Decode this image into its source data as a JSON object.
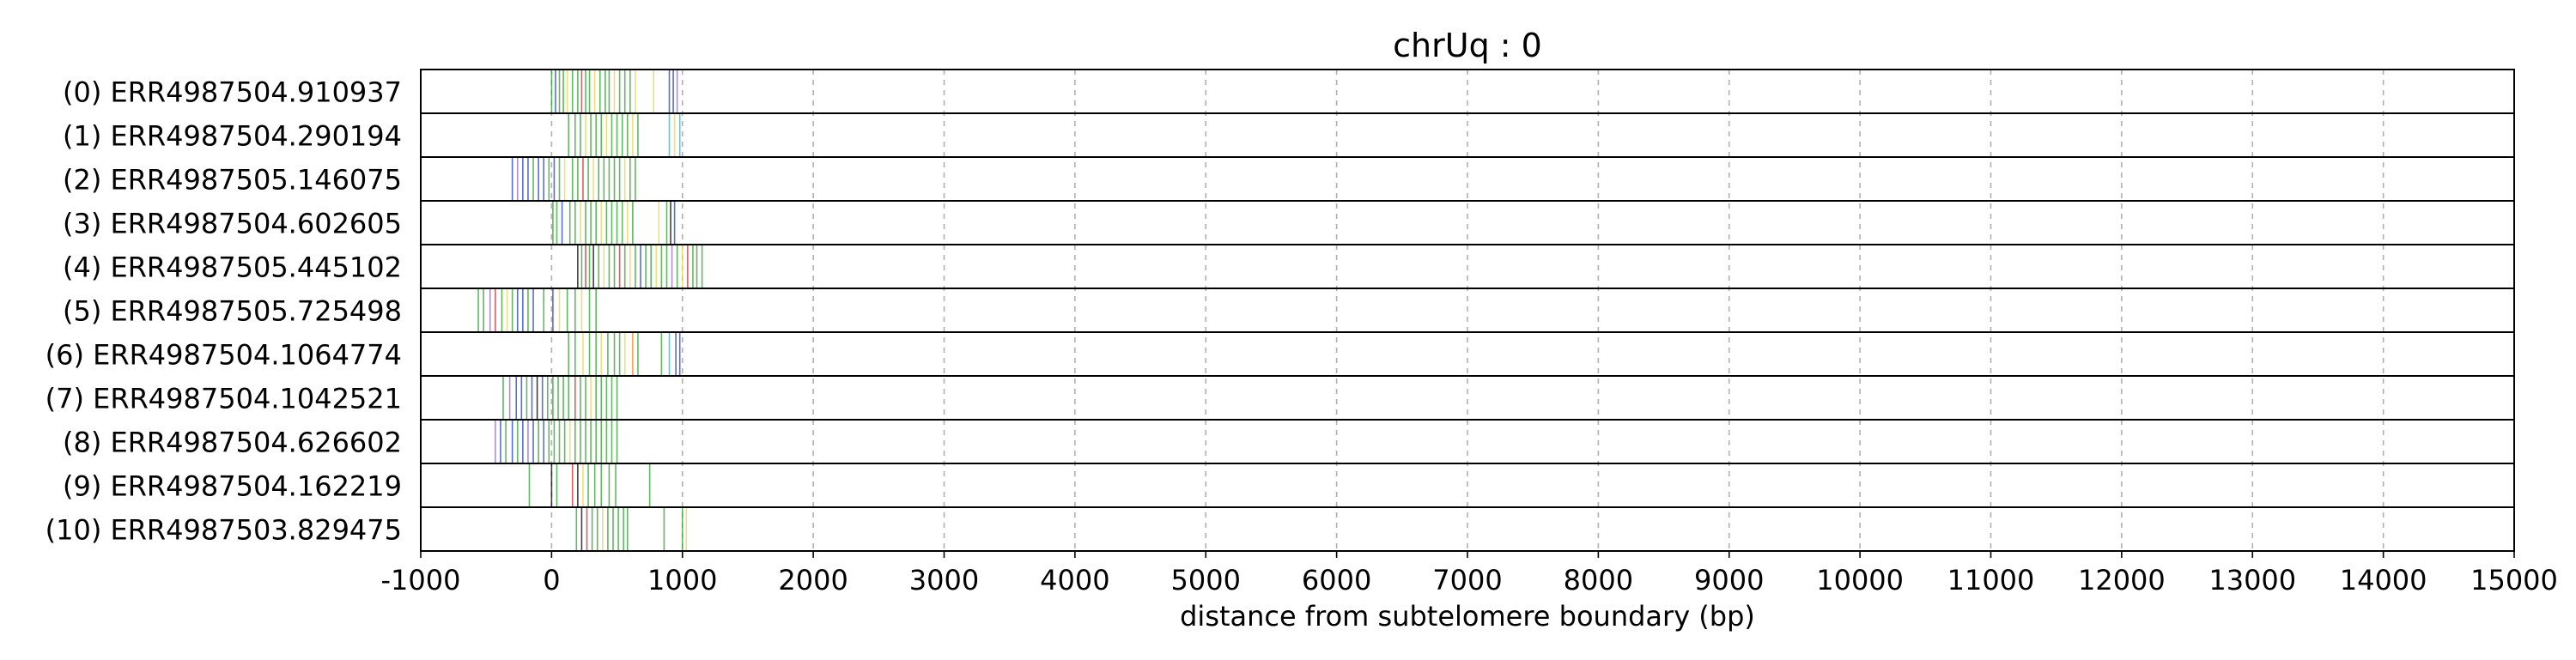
{
  "chart_data": {
    "type": "event-track",
    "title": "chrUq : 0",
    "xlabel": "distance from subtelomere boundary (bp)",
    "xlim": [
      -1000,
      15000
    ],
    "xticks": [
      -1000,
      0,
      1000,
      2000,
      3000,
      4000,
      5000,
      6000,
      7000,
      8000,
      9000,
      10000,
      11000,
      12000,
      13000,
      14000,
      15000
    ],
    "grid": "x-dashed",
    "colors": {
      "green": "#2ca02c",
      "blue": "#1f3fbf",
      "yellow": "#e8d44d",
      "red": "#d62728",
      "purple": "#9467bd",
      "orange": "#ff7f0e",
      "cyan": "#17becf",
      "black": "#000000"
    },
    "reads": [
      {
        "label": "(0) ERR4987504.910937",
        "events": [
          [
            0,
            "green"
          ],
          [
            30,
            "blue"
          ],
          [
            60,
            "green"
          ],
          [
            90,
            "green"
          ],
          [
            120,
            "yellow"
          ],
          [
            160,
            "green"
          ],
          [
            200,
            "green"
          ],
          [
            230,
            "red"
          ],
          [
            260,
            "green"
          ],
          [
            290,
            "green"
          ],
          [
            330,
            "yellow"
          ],
          [
            370,
            "green"
          ],
          [
            410,
            "green"
          ],
          [
            440,
            "green"
          ],
          [
            480,
            "yellow"
          ],
          [
            520,
            "green"
          ],
          [
            560,
            "green"
          ],
          [
            600,
            "green"
          ],
          [
            640,
            "yellow"
          ],
          [
            780,
            "yellow"
          ],
          [
            900,
            "blue"
          ],
          [
            930,
            "blue"
          ],
          [
            960,
            "purple"
          ]
        ]
      },
      {
        "label": "(1) ERR4987504.290194",
        "events": [
          [
            130,
            "green"
          ],
          [
            180,
            "green"
          ],
          [
            220,
            "green"
          ],
          [
            260,
            "yellow"
          ],
          [
            300,
            "green"
          ],
          [
            340,
            "green"
          ],
          [
            380,
            "green"
          ],
          [
            420,
            "yellow"
          ],
          [
            460,
            "green"
          ],
          [
            500,
            "green"
          ],
          [
            540,
            "green"
          ],
          [
            580,
            "green"
          ],
          [
            620,
            "yellow"
          ],
          [
            660,
            "green"
          ],
          [
            900,
            "cyan"
          ],
          [
            940,
            "yellow"
          ],
          [
            980,
            "cyan"
          ]
        ]
      },
      {
        "label": "(2) ERR4987505.146075",
        "events": [
          [
            -300,
            "blue"
          ],
          [
            -260,
            "purple"
          ],
          [
            -220,
            "blue"
          ],
          [
            -180,
            "blue"
          ],
          [
            -140,
            "green"
          ],
          [
            -100,
            "blue"
          ],
          [
            -60,
            "blue"
          ],
          [
            -20,
            "green"
          ],
          [
            20,
            "blue"
          ],
          [
            60,
            "green"
          ],
          [
            100,
            "yellow"
          ],
          [
            160,
            "green"
          ],
          [
            200,
            "green"
          ],
          [
            240,
            "red"
          ],
          [
            280,
            "green"
          ],
          [
            320,
            "yellow"
          ],
          [
            360,
            "green"
          ],
          [
            400,
            "green"
          ],
          [
            440,
            "green"
          ],
          [
            480,
            "green"
          ],
          [
            520,
            "green"
          ],
          [
            560,
            "yellow"
          ],
          [
            600,
            "green"
          ],
          [
            640,
            "green"
          ]
        ]
      },
      {
        "label": "(3) ERR4987504.602605",
        "events": [
          [
            10,
            "green"
          ],
          [
            40,
            "green"
          ],
          [
            80,
            "blue"
          ],
          [
            140,
            "green"
          ],
          [
            180,
            "green"
          ],
          [
            220,
            "yellow"
          ],
          [
            260,
            "green"
          ],
          [
            300,
            "green"
          ],
          [
            340,
            "green"
          ],
          [
            380,
            "yellow"
          ],
          [
            420,
            "green"
          ],
          [
            460,
            "green"
          ],
          [
            500,
            "green"
          ],
          [
            540,
            "green"
          ],
          [
            580,
            "yellow"
          ],
          [
            620,
            "green"
          ],
          [
            820,
            "yellow"
          ],
          [
            880,
            "green"
          ],
          [
            910,
            "black"
          ],
          [
            940,
            "blue"
          ]
        ]
      },
      {
        "label": "(4) ERR4987505.445102",
        "events": [
          [
            200,
            "black"
          ],
          [
            230,
            "green"
          ],
          [
            260,
            "red"
          ],
          [
            290,
            "green"
          ],
          [
            320,
            "black"
          ],
          [
            360,
            "green"
          ],
          [
            400,
            "yellow"
          ],
          [
            440,
            "green"
          ],
          [
            480,
            "green"
          ],
          [
            520,
            "red"
          ],
          [
            560,
            "green"
          ],
          [
            600,
            "yellow"
          ],
          [
            640,
            "green"
          ],
          [
            680,
            "blue"
          ],
          [
            720,
            "green"
          ],
          [
            760,
            "green"
          ],
          [
            800,
            "yellow"
          ],
          [
            840,
            "green"
          ],
          [
            880,
            "green"
          ],
          [
            920,
            "purple"
          ],
          [
            960,
            "green"
          ],
          [
            1000,
            "yellow"
          ],
          [
            1040,
            "red"
          ],
          [
            1080,
            "green"
          ],
          [
            1110,
            "green"
          ],
          [
            1150,
            "green"
          ]
        ]
      },
      {
        "label": "(5) ERR4987505.725498",
        "events": [
          [
            -560,
            "green"
          ],
          [
            -520,
            "green"
          ],
          [
            -470,
            "purple"
          ],
          [
            -430,
            "red"
          ],
          [
            -380,
            "green"
          ],
          [
            -340,
            "yellow"
          ],
          [
            -300,
            "green"
          ],
          [
            -260,
            "blue"
          ],
          [
            -220,
            "blue"
          ],
          [
            -180,
            "green"
          ],
          [
            -140,
            "blue"
          ],
          [
            -60,
            "green"
          ],
          [
            10,
            "blue"
          ],
          [
            60,
            "yellow"
          ],
          [
            120,
            "green"
          ],
          [
            180,
            "green"
          ],
          [
            230,
            "yellow"
          ],
          [
            290,
            "green"
          ],
          [
            340,
            "green"
          ]
        ]
      },
      {
        "label": "(6) ERR4987504.1064774",
        "events": [
          [
            130,
            "green"
          ],
          [
            180,
            "green"
          ],
          [
            240,
            "yellow"
          ],
          [
            290,
            "green"
          ],
          [
            340,
            "green"
          ],
          [
            380,
            "yellow"
          ],
          [
            430,
            "green"
          ],
          [
            480,
            "green"
          ],
          [
            520,
            "green"
          ],
          [
            560,
            "yellow"
          ],
          [
            620,
            "orange"
          ],
          [
            660,
            "green"
          ],
          [
            840,
            "green"
          ],
          [
            900,
            "cyan"
          ],
          [
            950,
            "blue"
          ],
          [
            980,
            "blue"
          ]
        ]
      },
      {
        "label": "(7) ERR4987504.1042521",
        "events": [
          [
            -370,
            "green"
          ],
          [
            -320,
            "purple"
          ],
          [
            -270,
            "blue"
          ],
          [
            -230,
            "blue"
          ],
          [
            -190,
            "green"
          ],
          [
            -150,
            "blue"
          ],
          [
            -110,
            "black"
          ],
          [
            -70,
            "blue"
          ],
          [
            -30,
            "green"
          ],
          [
            10,
            "green"
          ],
          [
            50,
            "green"
          ],
          [
            90,
            "green"
          ],
          [
            130,
            "green"
          ],
          [
            180,
            "red"
          ],
          [
            220,
            "green"
          ],
          [
            260,
            "green"
          ],
          [
            300,
            "yellow"
          ],
          [
            340,
            "green"
          ],
          [
            380,
            "green"
          ],
          [
            420,
            "green"
          ],
          [
            460,
            "green"
          ],
          [
            500,
            "green"
          ]
        ]
      },
      {
        "label": "(8) ERR4987504.626602",
        "events": [
          [
            -430,
            "purple"
          ],
          [
            -390,
            "blue"
          ],
          [
            -350,
            "green"
          ],
          [
            -300,
            "blue"
          ],
          [
            -260,
            "green"
          ],
          [
            -220,
            "blue"
          ],
          [
            -180,
            "purple"
          ],
          [
            -140,
            "blue"
          ],
          [
            -100,
            "green"
          ],
          [
            -60,
            "blue"
          ],
          [
            -20,
            "green"
          ],
          [
            20,
            "green"
          ],
          [
            60,
            "green"
          ],
          [
            100,
            "green"
          ],
          [
            140,
            "yellow"
          ],
          [
            180,
            "green"
          ],
          [
            220,
            "green"
          ],
          [
            260,
            "green"
          ],
          [
            300,
            "green"
          ],
          [
            340,
            "green"
          ],
          [
            380,
            "green"
          ],
          [
            420,
            "green"
          ],
          [
            460,
            "green"
          ],
          [
            500,
            "green"
          ]
        ]
      },
      {
        "label": "(9) ERR4987504.162219",
        "events": [
          [
            -170,
            "green"
          ],
          [
            0,
            "black"
          ],
          [
            40,
            "green"
          ],
          [
            160,
            "red"
          ],
          [
            200,
            "black"
          ],
          [
            240,
            "yellow"
          ],
          [
            280,
            "green"
          ],
          [
            330,
            "green"
          ],
          [
            380,
            "green"
          ],
          [
            440,
            "green"
          ],
          [
            490,
            "green"
          ],
          [
            750,
            "green"
          ]
        ]
      },
      {
        "label": "(10) ERR4987503.829475",
        "events": [
          [
            190,
            "green"
          ],
          [
            230,
            "black"
          ],
          [
            270,
            "red"
          ],
          [
            310,
            "green"
          ],
          [
            350,
            "green"
          ],
          [
            390,
            "yellow"
          ],
          [
            430,
            "green"
          ],
          [
            470,
            "green"
          ],
          [
            510,
            "green"
          ],
          [
            550,
            "green"
          ],
          [
            580,
            "green"
          ],
          [
            860,
            "green"
          ],
          [
            1000,
            "green"
          ],
          [
            1030,
            "yellow"
          ]
        ]
      }
    ]
  }
}
